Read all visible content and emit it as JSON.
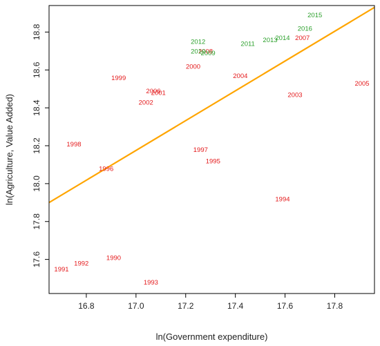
{
  "chart_data": {
    "type": "scatter",
    "xlabel": "ln(Government expenditure)",
    "ylabel": "ln(Agriculture, Value Added)",
    "xlim": [
      16.65,
      17.96
    ],
    "ylim": [
      17.42,
      18.94
    ],
    "x_ticks": [
      "16.8",
      "17.0",
      "17.2",
      "17.4",
      "17.6",
      "17.8"
    ],
    "y_ticks": [
      "17.6",
      "17.8",
      "18.0",
      "18.2",
      "18.4",
      "18.6",
      "18.8"
    ],
    "grid": false,
    "colors": {
      "red": "#e41a1c",
      "green": "#2ca02c",
      "fit_line": "#ffa500",
      "frame": "#000000"
    },
    "points": [
      {
        "label": "1990",
        "x": 16.91,
        "y": 17.61,
        "color": "red"
      },
      {
        "label": "1991",
        "x": 16.7,
        "y": 17.55,
        "color": "red"
      },
      {
        "label": "1992",
        "x": 16.78,
        "y": 17.58,
        "color": "red"
      },
      {
        "label": "1993",
        "x": 17.06,
        "y": 17.48,
        "color": "red"
      },
      {
        "label": "1994",
        "x": 17.59,
        "y": 17.92,
        "color": "red"
      },
      {
        "label": "1995",
        "x": 17.31,
        "y": 18.12,
        "color": "red"
      },
      {
        "label": "1996",
        "x": 16.88,
        "y": 18.08,
        "color": "red"
      },
      {
        "label": "1997",
        "x": 17.26,
        "y": 18.18,
        "color": "red"
      },
      {
        "label": "1998",
        "x": 16.75,
        "y": 18.21,
        "color": "red"
      },
      {
        "label": "1999",
        "x": 16.93,
        "y": 18.56,
        "color": "red"
      },
      {
        "label": "2000",
        "x": 17.23,
        "y": 18.62,
        "color": "red"
      },
      {
        "label": "2001",
        "x": 17.09,
        "y": 18.48,
        "color": "red"
      },
      {
        "label": "2002",
        "x": 17.04,
        "y": 18.43,
        "color": "red"
      },
      {
        "label": "2003",
        "x": 17.64,
        "y": 18.47,
        "color": "red"
      },
      {
        "label": "2004",
        "x": 17.42,
        "y": 18.57,
        "color": "red"
      },
      {
        "label": "2005",
        "x": 17.91,
        "y": 18.53,
        "color": "red"
      },
      {
        "label": "2006",
        "x": 17.07,
        "y": 18.49,
        "color": "red"
      },
      {
        "label": "2007",
        "x": 17.67,
        "y": 18.77,
        "color": "red"
      },
      {
        "label": "2008",
        "x": 17.28,
        "y": 18.7,
        "color": "red"
      },
      {
        "label": "2009",
        "x": 17.29,
        "y": 18.69,
        "color": "green"
      },
      {
        "label": "2010",
        "x": 17.25,
        "y": 18.7,
        "color": "green"
      },
      {
        "label": "2011",
        "x": 17.45,
        "y": 18.74,
        "color": "green"
      },
      {
        "label": "2012",
        "x": 17.25,
        "y": 18.75,
        "color": "green"
      },
      {
        "label": "2013",
        "x": 17.54,
        "y": 18.76,
        "color": "green"
      },
      {
        "label": "2014",
        "x": 17.59,
        "y": 18.77,
        "color": "green"
      },
      {
        "label": "2015",
        "x": 17.72,
        "y": 18.89,
        "color": "green"
      },
      {
        "label": "2016",
        "x": 17.68,
        "y": 18.82,
        "color": "green"
      }
    ],
    "fit_line": {
      "x": [
        16.65,
        17.96
      ],
      "y": [
        17.9,
        18.93
      ]
    }
  }
}
